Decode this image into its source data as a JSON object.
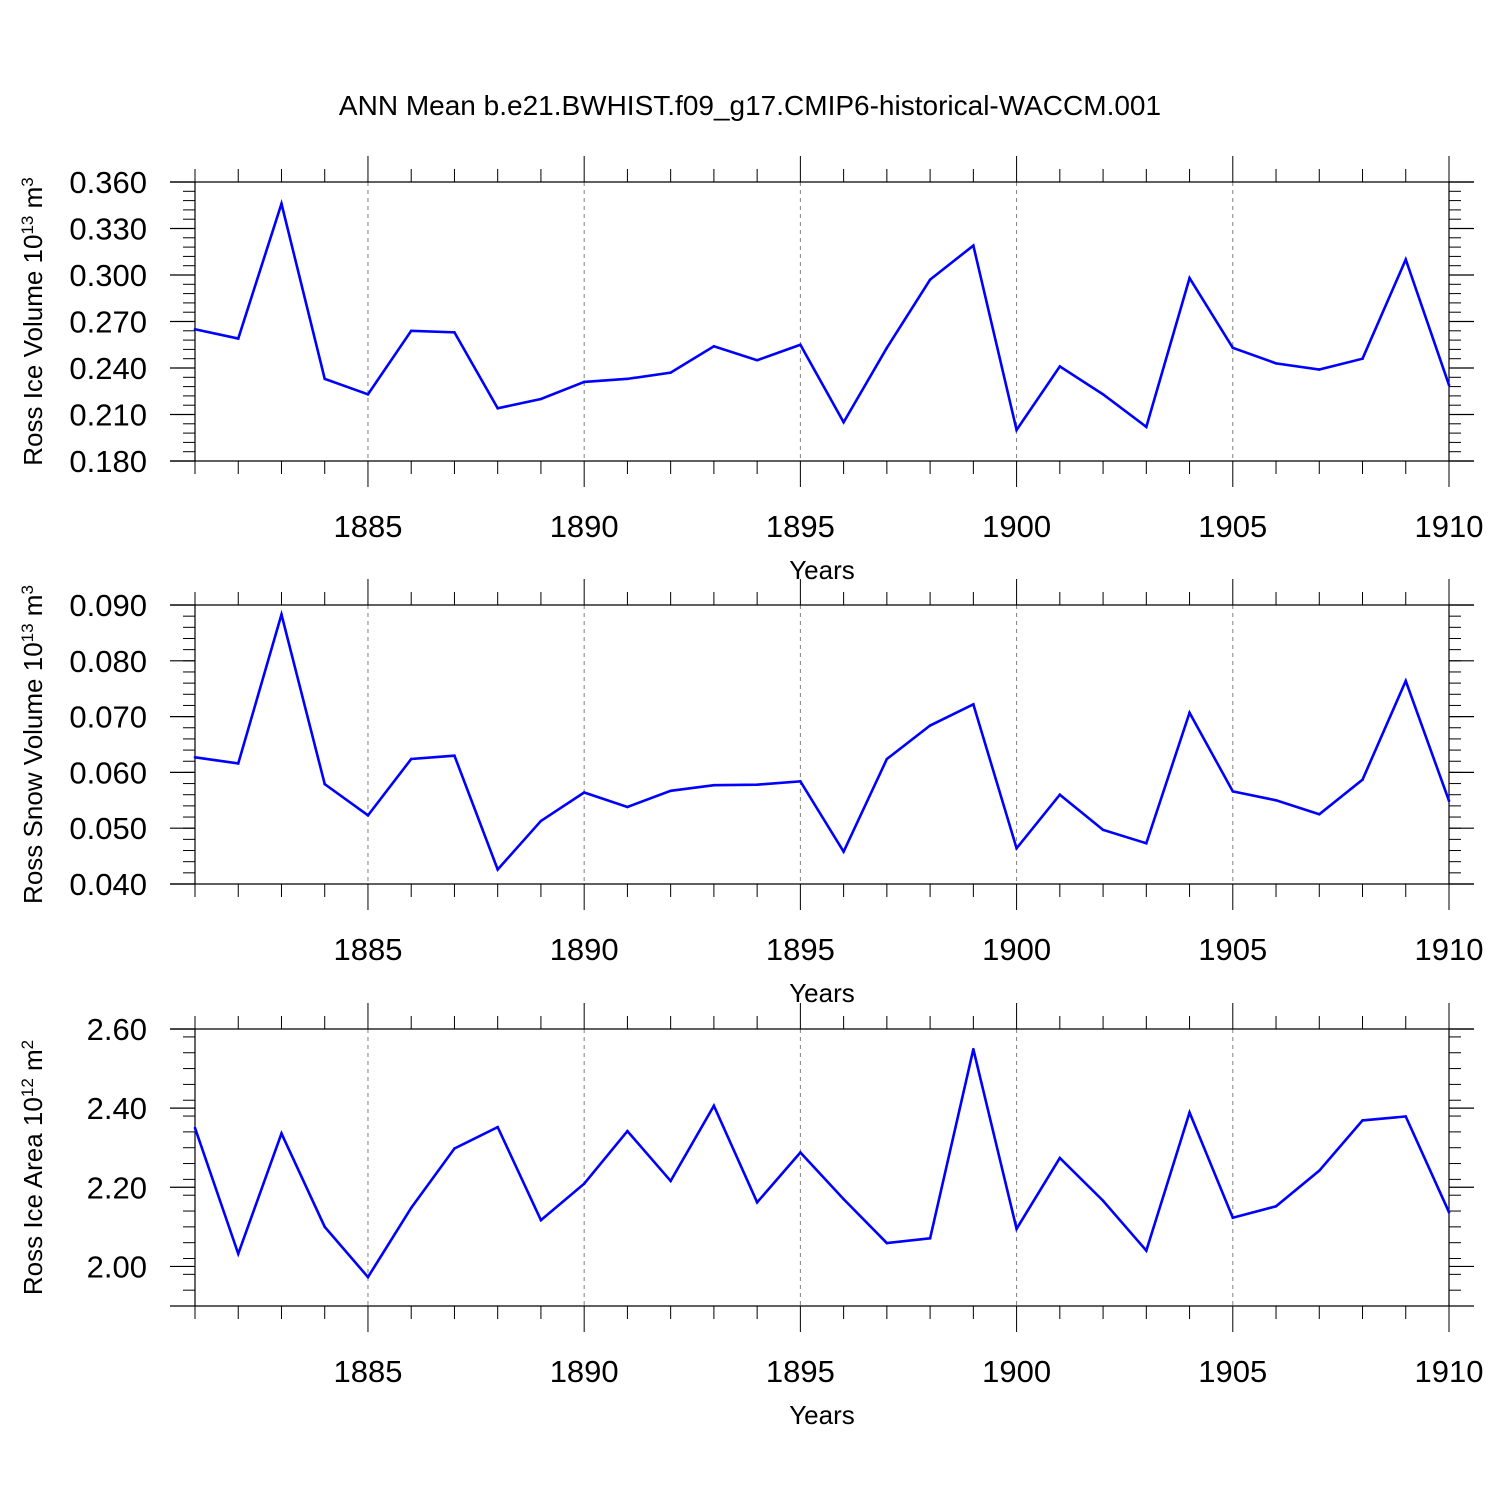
{
  "title": "ANN Mean b.e21.BWHIST.f09_g17.CMIP6-historical-WACCM.001",
  "colors": {
    "line": "#0000ff",
    "axis": "#000000",
    "grid": "#808080",
    "background": "#ffffff"
  },
  "chart_data": [
    {
      "type": "line",
      "title": "",
      "ylabel_text": "Ross Ice Volume 10",
      "ylabel_exp": "13",
      "ylabel_unit": " m",
      "ylabel_unit_exp": "3",
      "xlabel": "Years",
      "xlim": [
        1881,
        1910
      ],
      "ylim": [
        0.18,
        0.36
      ],
      "yticks": [
        "0.180",
        "0.210",
        "0.240",
        "0.270",
        "0.300",
        "0.330",
        "0.360"
      ],
      "ytick_values": [
        0.18,
        0.21,
        0.24,
        0.27,
        0.3,
        0.33,
        0.36
      ],
      "xticks": [
        "1885",
        "1890",
        "1895",
        "1900",
        "1905",
        "1910"
      ],
      "xtick_values": [
        1885,
        1890,
        1895,
        1900,
        1905,
        1910
      ],
      "grid": "vertical dashed at major x ticks",
      "series": [
        {
          "x": [
            1881,
            1882,
            1883,
            1884,
            1885,
            1886,
            1887,
            1888,
            1889,
            1890,
            1891,
            1892,
            1893,
            1894,
            1895,
            1896,
            1897,
            1898,
            1899,
            1900,
            1901,
            1902,
            1903,
            1904,
            1905,
            1906,
            1907,
            1908,
            1909,
            1910
          ],
          "values": [
            0.265,
            0.259,
            0.346,
            0.233,
            0.223,
            0.264,
            0.263,
            0.214,
            0.22,
            0.231,
            0.233,
            0.237,
            0.254,
            0.245,
            0.255,
            0.205,
            0.253,
            0.297,
            0.319,
            0.2,
            0.241,
            0.223,
            0.202,
            0.298,
            0.253,
            0.243,
            0.239,
            0.246,
            0.31,
            0.229
          ]
        }
      ]
    },
    {
      "type": "line",
      "title": "",
      "ylabel_text": "Ross Snow Volume 10",
      "ylabel_exp": "13",
      "ylabel_unit": " m",
      "ylabel_unit_exp": "3",
      "xlabel": "Years",
      "xlim": [
        1881,
        1910
      ],
      "ylim": [
        0.04,
        0.09
      ],
      "yticks": [
        "0.040",
        "0.050",
        "0.060",
        "0.070",
        "0.080",
        "0.090"
      ],
      "ytick_values": [
        0.04,
        0.05,
        0.06,
        0.07,
        0.08,
        0.09
      ],
      "xticks": [
        "1885",
        "1890",
        "1895",
        "1900",
        "1905",
        "1910"
      ],
      "xtick_values": [
        1885,
        1890,
        1895,
        1900,
        1905,
        1910
      ],
      "grid": "vertical dashed at major x ticks",
      "series": [
        {
          "x": [
            1881,
            1882,
            1883,
            1884,
            1885,
            1886,
            1887,
            1888,
            1889,
            1890,
            1891,
            1892,
            1893,
            1894,
            1895,
            1896,
            1897,
            1898,
            1899,
            1900,
            1901,
            1902,
            1903,
            1904,
            1905,
            1906,
            1907,
            1908,
            1909,
            1910
          ],
          "values": [
            0.0627,
            0.0616,
            0.0883,
            0.0579,
            0.0523,
            0.0624,
            0.063,
            0.0426,
            0.0513,
            0.0564,
            0.0538,
            0.0567,
            0.0577,
            0.0578,
            0.0584,
            0.0458,
            0.0624,
            0.0684,
            0.0722,
            0.0464,
            0.056,
            0.0497,
            0.0473,
            0.0707,
            0.0566,
            0.055,
            0.0525,
            0.0587,
            0.0764,
            0.0549
          ]
        }
      ]
    },
    {
      "type": "line",
      "title": "",
      "ylabel_text": "Ross Ice Area 10",
      "ylabel_exp": "12",
      "ylabel_unit": " m",
      "ylabel_unit_exp": "2",
      "xlabel": "Years",
      "xlim": [
        1881,
        1910
      ],
      "ylim": [
        1.9,
        2.6
      ],
      "yticks": [
        "2.00",
        "2.20",
        "2.40",
        "2.60"
      ],
      "ytick_values": [
        2.0,
        2.2,
        2.4,
        2.6
      ],
      "xticks": [
        "1885",
        "1890",
        "1895",
        "1900",
        "1905",
        "1910"
      ],
      "xtick_values": [
        1885,
        1890,
        1895,
        1900,
        1905,
        1910
      ],
      "grid": "vertical dashed at major x ticks",
      "series": [
        {
          "x": [
            1881,
            1882,
            1883,
            1884,
            1885,
            1886,
            1887,
            1888,
            1889,
            1890,
            1891,
            1892,
            1893,
            1894,
            1895,
            1896,
            1897,
            1898,
            1899,
            1900,
            1901,
            1902,
            1903,
            1904,
            1905,
            1906,
            1907,
            1908,
            1909,
            1910
          ],
          "values": [
            2.35,
            2.032,
            2.336,
            2.1,
            1.973,
            2.148,
            2.298,
            2.352,
            2.117,
            2.209,
            2.342,
            2.216,
            2.406,
            2.162,
            2.288,
            2.17,
            2.059,
            2.071,
            2.549,
            2.095,
            2.274,
            2.166,
            2.04,
            2.389,
            2.123,
            2.152,
            2.242,
            2.369,
            2.379,
            2.137
          ]
        }
      ]
    }
  ]
}
